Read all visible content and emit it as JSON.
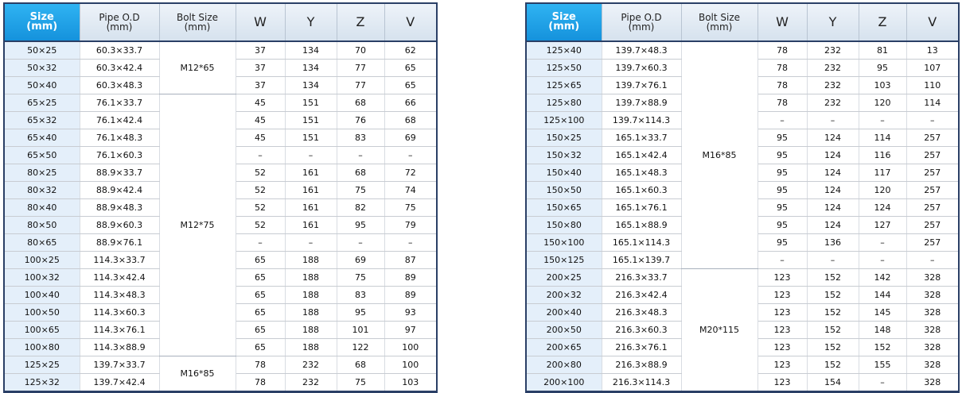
{
  "tables": [
    {
      "headers": [
        "Size\n(mm)",
        "Pipe O.D\n(mm)",
        "Bolt Size\n(mm)",
        "W",
        "Y",
        "Z",
        "V"
      ],
      "groups": [
        {
          "bolt": "M12*65",
          "rows": [
            [
              "50×25",
              "60.3×33.7",
              "37",
              "134",
              "70",
              "62"
            ],
            [
              "50×32",
              "60.3×42.4",
              "37",
              "134",
              "77",
              "65"
            ],
            [
              "50×40",
              "60.3×48.3",
              "37",
              "134",
              "77",
              "65"
            ]
          ]
        },
        {
          "bolt": "M12*75",
          "rows": [
            [
              "65×25",
              "76.1×33.7",
              "45",
              "151",
              "68",
              "66"
            ],
            [
              "65×32",
              "76.1×42.4",
              "45",
              "151",
              "76",
              "68"
            ],
            [
              "65×40",
              "76.1×48.3",
              "45",
              "151",
              "83",
              "69"
            ],
            [
              "65×50",
              "76.1×60.3",
              "–",
              "–",
              "–",
              "–"
            ],
            [
              "80×25",
              "88.9×33.7",
              "52",
              "161",
              "68",
              "72"
            ],
            [
              "80×32",
              "88.9×42.4",
              "52",
              "161",
              "75",
              "74"
            ],
            [
              "80×40",
              "88.9×48.3",
              "52",
              "161",
              "82",
              "75"
            ],
            [
              "80×50",
              "88.9×60.3",
              "52",
              "161",
              "95",
              "79"
            ],
            [
              "80×65",
              "88.9×76.1",
              "–",
              "–",
              "–",
              "–"
            ],
            [
              "100×25",
              "114.3×33.7",
              "65",
              "188",
              "69",
              "87"
            ],
            [
              "100×32",
              "114.3×42.4",
              "65",
              "188",
              "75",
              "89"
            ],
            [
              "100×40",
              "114.3×48.3",
              "65",
              "188",
              "83",
              "89"
            ],
            [
              "100×50",
              "114.3×60.3",
              "65",
              "188",
              "95",
              "93"
            ],
            [
              "100×65",
              "114.3×76.1",
              "65",
              "188",
              "101",
              "97"
            ],
            [
              "100×80",
              "114.3×88.9",
              "65",
              "188",
              "122",
              "100"
            ]
          ]
        },
        {
          "bolt": "M16*85",
          "rows": [
            [
              "125×25",
              "139.7×33.7",
              "78",
              "232",
              "68",
              "100"
            ],
            [
              "125×32",
              "139.7×42.4",
              "78",
              "232",
              "75",
              "103"
            ]
          ]
        }
      ]
    },
    {
      "headers": [
        "Size\n(mm)",
        "Pipe O.D\n(mm)",
        "Bolt Size\n(mm)",
        "W",
        "Y",
        "Z",
        "V"
      ],
      "groups": [
        {
          "bolt": "M16*85",
          "rows": [
            [
              "125×40",
              "139.7×48.3",
              "78",
              "232",
              "81",
              "13"
            ],
            [
              "125×50",
              "139.7×60.3",
              "78",
              "232",
              "95",
              "107"
            ],
            [
              "125×65",
              "139.7×76.1",
              "78",
              "232",
              "103",
              "110"
            ],
            [
              "125×80",
              "139.7×88.9",
              "78",
              "232",
              "120",
              "114"
            ],
            [
              "125×100",
              "139.7×114.3",
              "–",
              "–",
              "–",
              "–"
            ],
            [
              "150×25",
              "165.1×33.7",
              "95",
              "124",
              "114",
              "257"
            ],
            [
              "150×32",
              "165.1×42.4",
              "95",
              "124",
              "116",
              "257"
            ],
            [
              "150×40",
              "165.1×48.3",
              "95",
              "124",
              "117",
              "257"
            ],
            [
              "150×50",
              "165.1×60.3",
              "95",
              "124",
              "120",
              "257"
            ],
            [
              "150×65",
              "165.1×76.1",
              "95",
              "124",
              "124",
              "257"
            ],
            [
              "150×80",
              "165.1×88.9",
              "95",
              "124",
              "127",
              "257"
            ],
            [
              "150×100",
              "165.1×114.3",
              "95",
              "136",
              "–",
              "257"
            ],
            [
              "150×125",
              "165.1×139.7",
              "–",
              "–",
              "–",
              "–"
            ]
          ]
        },
        {
          "bolt": "M20*115",
          "rows": [
            [
              "200×25",
              "216.3×33.7",
              "123",
              "152",
              "142",
              "328"
            ],
            [
              "200×32",
              "216.3×42.4",
              "123",
              "152",
              "144",
              "328"
            ],
            [
              "200×40",
              "216.3×48.3",
              "123",
              "152",
              "145",
              "328"
            ],
            [
              "200×50",
              "216.3×60.3",
              "123",
              "152",
              "148",
              "328"
            ],
            [
              "200×65",
              "216.3×76.1",
              "123",
              "152",
              "152",
              "328"
            ],
            [
              "200×80",
              "216.3×88.9",
              "123",
              "152",
              "155",
              "328"
            ],
            [
              "200×100",
              "216.3×114.3",
              "123",
              "154",
              "–",
              "328"
            ]
          ]
        }
      ]
    }
  ]
}
